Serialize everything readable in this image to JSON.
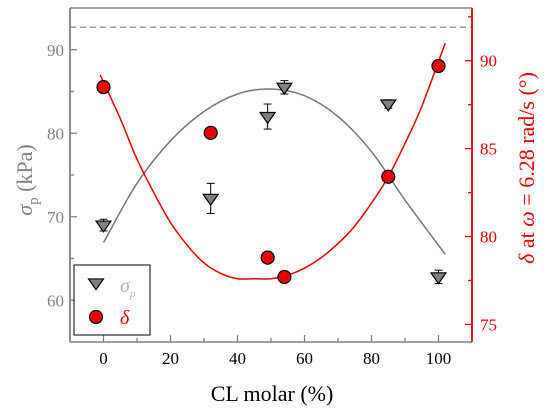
{
  "chart_data": {
    "type": "scatter",
    "xlabel": "CL molar (%)",
    "ylabel_left": {
      "symbol": "σ",
      "subscript": "p",
      "unit": " (kPa)"
    },
    "ylabel_right": {
      "prefix": "δ",
      "middle": " at ",
      "omega": "ω",
      "rest": " = 6.28 rad/s (°)"
    },
    "xlim": [
      -10,
      110
    ],
    "ylim_left": [
      55,
      95
    ],
    "ylim_right": [
      74,
      93
    ],
    "x_ticks": [
      0,
      20,
      40,
      60,
      80,
      100
    ],
    "y_ticks_left": [
      60,
      70,
      80,
      90
    ],
    "y_ticks_right": [
      75,
      80,
      85,
      90
    ],
    "x_tick_labels": [
      "0",
      "20",
      "40",
      "60",
      "80",
      "100"
    ],
    "y_tick_labels_left": [
      "60",
      "70",
      "80",
      "90"
    ],
    "y_tick_labels_right": [
      "75",
      "80",
      "85",
      "90"
    ],
    "reference_line_left": 92.7,
    "series": [
      {
        "name": "σp",
        "axis": "left",
        "marker": "triangle-down",
        "x": [
          0,
          32,
          49,
          54,
          85,
          100
        ],
        "y": [
          69.0,
          72.2,
          82.0,
          85.5,
          83.5,
          62.8
        ],
        "err": [
          0.7,
          1.8,
          1.5,
          0.8,
          0.5,
          0.8
        ],
        "fit_x": [
          0,
          10,
          20,
          30,
          40,
          50,
          60,
          70,
          80,
          90,
          102
        ],
        "fit_y": [
          66.9,
          74.0,
          79.1,
          82.6,
          84.7,
          85.3,
          84.5,
          82.0,
          77.8,
          72.0,
          65.5
        ],
        "color": "#808080",
        "fit_color": "#777777"
      },
      {
        "name": "δ",
        "axis": "right",
        "marker": "circle",
        "x": [
          0,
          32,
          49,
          54,
          85,
          100
        ],
        "y": [
          88.5,
          85.9,
          78.8,
          77.7,
          83.4,
          89.7
        ],
        "fit_x": [
          -1,
          5,
          10,
          15,
          20,
          25,
          30,
          35,
          40,
          45,
          50,
          55,
          60,
          65,
          70,
          75,
          80,
          85,
          90,
          95,
          102
        ],
        "fit_y": [
          89.2,
          86.7,
          84.4,
          82.5,
          80.8,
          79.5,
          78.5,
          77.9,
          77.6,
          77.6,
          77.6,
          77.8,
          78.2,
          78.8,
          79.6,
          80.6,
          81.9,
          83.4,
          85.3,
          87.4,
          91.0
        ],
        "color": "#e60000",
        "fit_color": "#e60000"
      }
    ],
    "legend": {
      "placement": "bottom-left",
      "entries": [
        {
          "label": "σ",
          "sub": "p",
          "marker": "triangle-down",
          "color": "#808080",
          "text_color": "#b3b3b3"
        },
        {
          "label": "δ",
          "sub": "",
          "marker": "circle",
          "color": "#e60000",
          "text_color": "#e60000"
        }
      ]
    },
    "colors": {
      "left_axis": "#808080",
      "right_axis": "#e60000",
      "frame": "#808080",
      "reference_line": "#808080",
      "text": "#000000"
    }
  }
}
